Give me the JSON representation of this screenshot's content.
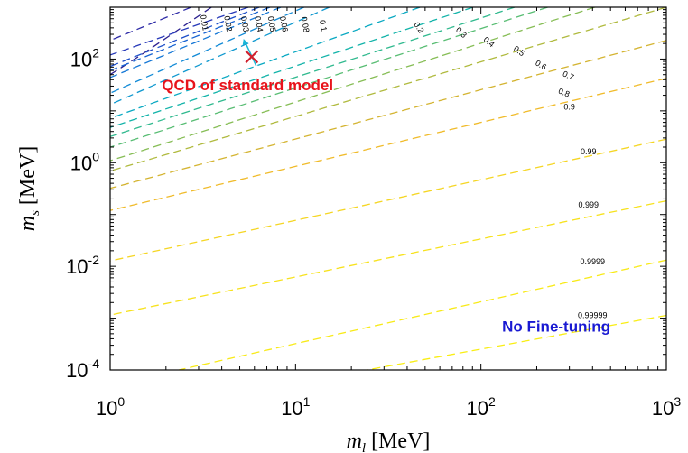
{
  "chart_data": {
    "type": "line",
    "xlabel_symbol": "m",
    "xlabel_sub": "l",
    "xlabel_unit": "[MeV]",
    "ylabel_symbol": "m",
    "ylabel_sub": "s",
    "ylabel_unit": "[MeV]",
    "xscale": "log",
    "yscale": "log",
    "xlim": [
      1,
      1000
    ],
    "ylim": [
      0.0001,
      1000
    ],
    "x_ticks": [
      {
        "value": 1,
        "base": "10",
        "exp": "0"
      },
      {
        "value": 10,
        "base": "10",
        "exp": "1"
      },
      {
        "value": 100,
        "base": "10",
        "exp": "2"
      },
      {
        "value": 1000,
        "base": "10",
        "exp": "3"
      }
    ],
    "y_ticks": [
      {
        "value": 0.0001,
        "base": "10",
        "exp": "-4"
      },
      {
        "value": 0.01,
        "base": "10",
        "exp": "-2"
      },
      {
        "value": 1,
        "base": "10",
        "exp": "0"
      },
      {
        "value": 100,
        "base": "10",
        "exp": "2"
      }
    ],
    "contour_style": "dashed",
    "contours": [
      {
        "label": "0.01",
        "color": "#2a1f8f",
        "points": [
          [
            3.52,
            1000
          ],
          [
            1.53,
            132
          ],
          [
            1,
            50
          ]
        ]
      },
      {
        "label": "0.02",
        "color": "#2d2aa6",
        "points": [
          [
            2.73,
            1000
          ],
          [
            1,
            229
          ]
        ]
      },
      {
        "label": "0.03",
        "color": "#2638b8",
        "points": [
          [
            5.56,
            1000
          ],
          [
            1,
            120
          ]
        ]
      },
      {
        "label": "0.04",
        "color": "#1d4fc9",
        "points": [
          [
            6.36,
            1000
          ],
          [
            1,
            72
          ]
        ]
      },
      {
        "label": "0.05",
        "color": "#1763d2",
        "points": [
          [
            7.27,
            1000
          ],
          [
            1,
            60
          ]
        ]
      },
      {
        "label": "0.06",
        "color": "#1477d6",
        "points": [
          [
            8.33,
            1000
          ],
          [
            1,
            44
          ]
        ]
      },
      {
        "label": "0.08",
        "color": "#128ad6",
        "points": [
          [
            11.1,
            1000
          ],
          [
            1,
            22
          ]
        ]
      },
      {
        "label": "0.1",
        "color": "#0f98cf",
        "points": [
          [
            15.2,
            1000
          ],
          [
            1,
            13.2
          ]
        ]
      },
      {
        "label": "0.2",
        "color": "#0aa9c2",
        "points": [
          [
            46.9,
            1000
          ],
          [
            1,
            7.2
          ]
        ]
      },
      {
        "label": "0.3",
        "color": "#12b3a9",
        "points": [
          [
            90.6,
            1000
          ],
          [
            1,
            4.8
          ]
        ]
      },
      {
        "label": "0.4",
        "color": "#2fb98e",
        "points": [
          [
            152,
            1000
          ],
          [
            1,
            3.2
          ]
        ]
      },
      {
        "label": "0.5",
        "color": "#58bd73",
        "points": [
          [
            229,
            1000
          ],
          [
            1,
            1.99
          ]
        ]
      },
      {
        "label": "0.6",
        "color": "#86bd55",
        "points": [
          [
            411,
            1000
          ],
          [
            1,
            1.09
          ]
        ]
      },
      {
        "label": "0.7",
        "color": "#b0ba3e",
        "points": [
          [
            1000,
            1000
          ],
          [
            1,
            0.69
          ]
        ]
      },
      {
        "label": "0.8",
        "color": "#d4b431",
        "points": [
          [
            1000,
            229
          ],
          [
            1,
            0.32
          ]
        ]
      },
      {
        "label": "0.9",
        "color": "#f0bb2a",
        "points": [
          [
            1000,
            42.5
          ],
          [
            1,
            0.12
          ]
        ]
      },
      {
        "label": "0.99",
        "color": "#f5d624",
        "points": [
          [
            1000,
            2.85
          ],
          [
            1,
            0.0127
          ]
        ]
      },
      {
        "label": "0.999",
        "color": "#f7e21d",
        "points": [
          [
            1000,
            0.183
          ],
          [
            1,
            0.00115
          ]
        ]
      },
      {
        "label": "0.9999",
        "color": "#f8ea18",
        "points": [
          [
            1000,
            0.0132
          ],
          [
            2.35,
            0.0001
          ]
        ]
      },
      {
        "label": "0.99999",
        "color": "#f9ee14",
        "points": [
          [
            1000,
            0.00113
          ],
          [
            24.2,
            0.0001
          ]
        ]
      }
    ],
    "contour_labels": [
      {
        "text": "0.01",
        "x": 3.2,
        "y": 500,
        "angle": 80
      },
      {
        "text": "0.02",
        "x": 4.3,
        "y": 480,
        "angle": 80
      },
      {
        "text": "0.03",
        "x": 5.3,
        "y": 470,
        "angle": 80
      },
      {
        "text": "0.04",
        "x": 6.3,
        "y": 470,
        "angle": 80
      },
      {
        "text": "0.05",
        "x": 7.4,
        "y": 470,
        "angle": 80
      },
      {
        "text": "0.06",
        "x": 8.6,
        "y": 470,
        "angle": 80
      },
      {
        "text": "0.08",
        "x": 11.2,
        "y": 460,
        "angle": 80
      },
      {
        "text": "0.1",
        "x": 14.0,
        "y": 440,
        "angle": 80
      },
      {
        "text": "0.2",
        "x": 46,
        "y": 400,
        "angle": 55
      },
      {
        "text": "0.3",
        "x": 78,
        "y": 320,
        "angle": 45
      },
      {
        "text": "0.4",
        "x": 110,
        "y": 210,
        "angle": 40
      },
      {
        "text": "0.5",
        "x": 160,
        "y": 140,
        "angle": 35
      },
      {
        "text": "0.6",
        "x": 210,
        "y": 75,
        "angle": 30
      },
      {
        "text": "0.7",
        "x": 295,
        "y": 47,
        "angle": 25
      },
      {
        "text": "0.8",
        "x": 280,
        "y": 22,
        "angle": 22
      },
      {
        "text": "0.9",
        "x": 300,
        "y": 11.5,
        "angle": 0
      },
      {
        "text": "0.99",
        "x": 380,
        "y": 1.6,
        "angle": 0
      },
      {
        "text": "0.999",
        "x": 380,
        "y": 0.15,
        "angle": 0
      },
      {
        "text": "0.9999",
        "x": 400,
        "y": 0.012,
        "angle": 0
      },
      {
        "text": "0.99999",
        "x": 400,
        "y": 0.0011,
        "angle": 0
      }
    ],
    "annotations": [
      {
        "text": "QCD of standard model",
        "x": 1.9,
        "y": 25,
        "color": "#e8141b"
      },
      {
        "text": "No Fine-tuning",
        "x": 130,
        "y": 0.00055,
        "color": "#1a1ad2"
      }
    ],
    "marker": {
      "x": 5.8,
      "y": 110,
      "symbol": "×",
      "color": "#d0212e",
      "arrow_color": "#19b7d8"
    }
  }
}
